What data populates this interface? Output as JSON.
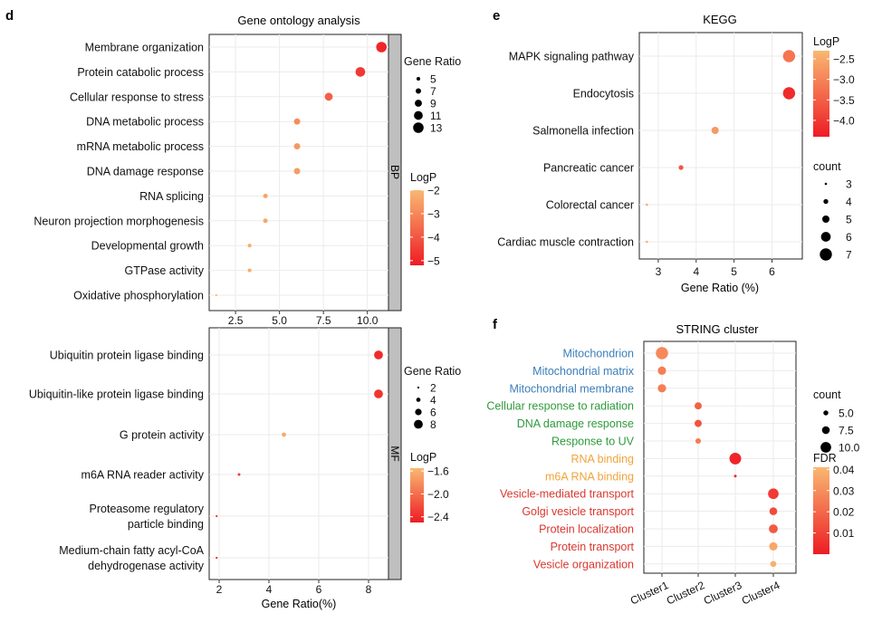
{
  "chart_data": [
    {
      "panel": "d",
      "type": "scatter",
      "title": "Gene ontology analysis",
      "facet": "BP",
      "xlabel": "",
      "xlim": [
        1.0,
        11.2
      ],
      "xticks": [
        2.5,
        5.0,
        7.5,
        10.0
      ],
      "xtick_labels": [
        "2.5",
        "5.0",
        "7.5",
        "10.0"
      ],
      "categories": [
        "Membrane organization",
        "Protein catabolic process",
        "Cellular response to stress",
        "DNA metabolic process",
        "mRNA metabolic process",
        "DNA damage response",
        "RNA splicing",
        "Neuron projection morphogenesis",
        "Developmental growth",
        "GTPase activity",
        "Oxidative phosphorylation"
      ],
      "x": [
        10.8,
        9.6,
        7.8,
        6.0,
        6.0,
        6.0,
        4.2,
        4.2,
        3.3,
        3.3,
        1.4
      ],
      "size": [
        13,
        12,
        10,
        8,
        8,
        8,
        6,
        6,
        5,
        5,
        3
      ],
      "color": [
        -5.0,
        -4.6,
        -3.8,
        -2.9,
        -2.7,
        -2.6,
        -2.4,
        -2.3,
        -2.2,
        -2.2,
        -2.0
      ],
      "size_legend": {
        "title": "Gene Ratio",
        "values": [
          "5",
          "7",
          "9",
          "11",
          "13"
        ],
        "sizes": [
          5,
          7,
          9,
          11,
          13
        ]
      },
      "color_legend": {
        "title": "LogP",
        "range": [
          -5.2,
          -2.0
        ],
        "ticks": [
          -2,
          -3,
          -4,
          -5
        ],
        "tick_labels": [
          "−2",
          "−3",
          "−4",
          "−5"
        ]
      }
    },
    {
      "panel": "d-mf",
      "type": "scatter",
      "facet": "MF",
      "xlabel": "Gene Ratio(%)",
      "xlim": [
        1.6,
        8.8
      ],
      "xticks": [
        2,
        4,
        6,
        8
      ],
      "xtick_labels": [
        "2",
        "4",
        "6",
        "8"
      ],
      "categories": [
        [
          "Ubiquitin protein ligase binding"
        ],
        [
          "Ubiquitin-like protein ligase binding"
        ],
        [
          "G protein activity"
        ],
        [
          "m6A RNA reader activity"
        ],
        [
          "Proteasome regulatory",
          "particle binding"
        ],
        [
          "Medium-chain fatty acyl-CoA",
          "dehydrogenase activity"
        ]
      ],
      "x": [
        8.4,
        8.4,
        4.6,
        2.8,
        1.9,
        1.9
      ],
      "size": [
        8,
        8,
        4,
        2.6,
        2,
        2
      ],
      "color": [
        -2.4,
        -2.35,
        -1.65,
        -2.3,
        -2.4,
        -2.45
      ],
      "size_legend": {
        "title": "Gene Ratio",
        "values": [
          "2",
          "4",
          "6",
          "8"
        ],
        "sizes": [
          2,
          4,
          6,
          8
        ]
      },
      "color_legend": {
        "title": "LogP",
        "range": [
          -2.5,
          -1.55
        ],
        "ticks": [
          -1.6,
          -2.0,
          -2.4
        ],
        "tick_labels": [
          "−1.6",
          "−2.0",
          "−2.4"
        ]
      }
    },
    {
      "panel": "e",
      "type": "scatter",
      "title": "KEGG",
      "xlabel": "Gene Ratio (%)",
      "xlim": [
        2.5,
        6.8
      ],
      "xticks": [
        3,
        4,
        5,
        6
      ],
      "xtick_labels": [
        "3",
        "4",
        "5",
        "6"
      ],
      "categories": [
        "MAPK signaling pathway",
        "Endocytosis",
        "Salmonella infection",
        "Pancreatic cancer",
        "Colorectal cancer",
        "Cardiac muscle contraction"
      ],
      "x": [
        6.45,
        6.45,
        4.5,
        3.6,
        2.7,
        2.7
      ],
      "size": [
        7,
        7,
        5,
        4,
        3,
        3
      ],
      "color": [
        -3.2,
        -4.2,
        -2.7,
        -3.6,
        -2.5,
        -2.4
      ],
      "size_legend": {
        "title": "count",
        "values": [
          "3",
          "4",
          "5",
          "6",
          "7"
        ],
        "sizes": [
          3,
          4,
          5,
          6,
          7
        ]
      },
      "color_legend": {
        "title": "LogP",
        "range": [
          -4.4,
          -2.3
        ],
        "ticks": [
          -2.5,
          -3.0,
          -3.5,
          -4.0
        ],
        "tick_labels": [
          "−2.5",
          "−3.0",
          "−3.5",
          "−4.0"
        ]
      }
    },
    {
      "panel": "f",
      "type": "scatter",
      "title": "STRING cluster",
      "xlabel": "",
      "categories_x": [
        "Cluster1",
        "Cluster2",
        "Cluster3",
        "Cluster4"
      ],
      "categories": [
        "Mitochondrion",
        "Mitochondrial matrix",
        "Mitochondrial membrane",
        "Cellular response to radiation",
        "DNA damage response",
        "Response to UV",
        "RNA binding",
        "m6A RNA binding",
        "Vesicle-mediated transport",
        "Golgi vesicle transport",
        "Protein localization",
        "Protein transport",
        "Vesicle organization"
      ],
      "label_colors": [
        "#3b7fb8",
        "#3b7fb8",
        "#3b7fb8",
        "#2e9b3c",
        "#2e9b3c",
        "#2e9b3c",
        "#f2a33a",
        "#f2a33a",
        "#d9382f",
        "#d9382f",
        "#d9382f",
        "#d9382f",
        "#d9382f"
      ],
      "x": [
        1,
        1,
        1,
        2,
        2,
        2,
        3,
        3,
        4,
        4,
        4,
        4,
        4
      ],
      "size": [
        11.5,
        8,
        8,
        7,
        7,
        5.5,
        11,
        3,
        10,
        7.5,
        8.5,
        8,
        6
      ],
      "color": [
        0.028,
        0.025,
        0.025,
        0.018,
        0.014,
        0.024,
        0.002,
        0.004,
        0.008,
        0.012,
        0.016,
        0.036,
        0.038
      ],
      "size_legend": {
        "title": "count",
        "values": [
          "5.0",
          "7.5",
          "10.0"
        ],
        "sizes": [
          5,
          7.5,
          10
        ]
      },
      "color_legend": {
        "title": "FDR",
        "range": [
          0.0,
          0.04
        ],
        "ticks": [
          0.04,
          0.03,
          0.02,
          0.01
        ],
        "tick_labels": [
          "0.04",
          "0.03",
          "0.02",
          "0.01"
        ]
      }
    }
  ],
  "panel_letters": {
    "d": "d",
    "e": "e",
    "f": "f"
  }
}
